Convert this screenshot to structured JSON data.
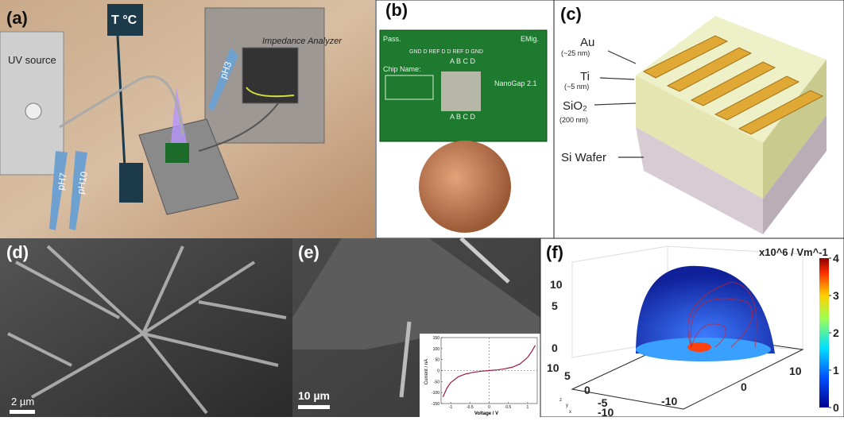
{
  "panels": {
    "a": {
      "label": "(a)",
      "thermo": "T °C",
      "uv": "UV source",
      "analyzer": "Impedance Analyzer",
      "pens": [
        "pH3",
        "pH7",
        "pH10"
      ]
    },
    "b": {
      "label": "(b)",
      "pass": "Pass.",
      "emig": "EMig.",
      "pins": "GND D REF D D REF D GND",
      "abcd_top": "A B C D",
      "abcd_bottom": "A B C D",
      "chip_name": "Chip Name:",
      "chip_id": "NanoGap 2.1"
    },
    "c": {
      "label": "(c)",
      "layers": [
        {
          "name": "Au",
          "thickness": "(~25 nm)"
        },
        {
          "name": "Ti",
          "thickness": "(~5 nm)"
        },
        {
          "name": "SiO₂",
          "thickness": "(200 nm)"
        },
        {
          "name": "Si Wafer"
        }
      ]
    },
    "d": {
      "label": "(d)",
      "scale": "2 µm"
    },
    "e": {
      "label": "(e)",
      "scale": "10 µm",
      "inset": {
        "type": "line",
        "xlabel": "Voltage / V",
        "ylabel": "Current / nA",
        "xlim": [
          -1.25,
          1.25
        ],
        "ylim": [
          -150,
          150
        ],
        "xticks": [
          -1,
          -0.5,
          0,
          0.5,
          1
        ],
        "yticks": [
          -150,
          -100,
          -50,
          0,
          50,
          100,
          150
        ],
        "x": [
          -1.2,
          -1.1,
          -1,
          -0.8,
          -0.6,
          -0.4,
          -0.2,
          0,
          0.2,
          0.4,
          0.6,
          0.8,
          1,
          1.1,
          1.2
        ],
        "y": [
          -120,
          -80,
          -55,
          -28,
          -15,
          -8,
          -3,
          0,
          3,
          8,
          15,
          30,
          60,
          85,
          115
        ],
        "color": "#9b1b48"
      }
    },
    "f": {
      "label": "(f)",
      "unit": "x10^6 / Vm^-1",
      "colorbar": {
        "lim": [
          0,
          4
        ],
        "ticks": [
          0,
          1,
          2,
          3,
          4
        ]
      },
      "axis_labels": [
        "10",
        "5",
        "0",
        "10",
        "5",
        "0",
        "-5",
        "-10",
        "-10",
        "0",
        "10"
      ],
      "triad": [
        "z",
        "y",
        "x"
      ]
    }
  }
}
